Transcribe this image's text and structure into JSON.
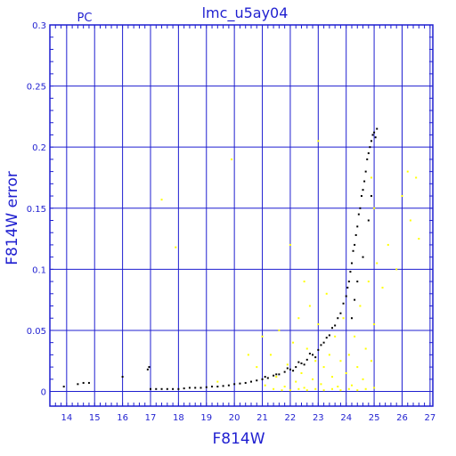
{
  "chart_data": {
    "type": "scatter",
    "title": "lmc_u5ay04",
    "corner_label": "PC",
    "xlabel": "F814W",
    "ylabel": "F814W error",
    "xlim": [
      13.4,
      27.1
    ],
    "ylim": [
      -0.012,
      0.3
    ],
    "x_ticks": [
      14,
      15,
      16,
      17,
      18,
      19,
      20,
      21,
      22,
      23,
      24,
      25,
      26,
      27
    ],
    "y_ticks": [
      0,
      0.05,
      0.1,
      0.15,
      0.2,
      0.25,
      0.3
    ],
    "x_tick_labels": [
      "14",
      "15",
      "16",
      "17",
      "18",
      "19",
      "20",
      "21",
      "22",
      "23",
      "24",
      "25",
      "26",
      "27"
    ],
    "y_tick_labels": [
      "0",
      "0.05",
      "0.1",
      "0.15",
      "0.2",
      "0.25",
      "0.3"
    ],
    "grid": true,
    "colors": {
      "axis": "#1f1fd0",
      "grid": "#1f1fd0",
      "series_main": "#000000",
      "series_other": "#ffff00"
    },
    "series": [
      {
        "color": "#000000",
        "points": [
          [
            13.9,
            0.004
          ],
          [
            14.4,
            0.006
          ],
          [
            14.6,
            0.007
          ],
          [
            14.8,
            0.007
          ],
          [
            16.0,
            0.012
          ],
          [
            16.9,
            0.018
          ],
          [
            16.95,
            0.02
          ],
          [
            17.0,
            0.002
          ],
          [
            17.2,
            0.002
          ],
          [
            17.4,
            0.002
          ],
          [
            17.6,
            0.002
          ],
          [
            17.8,
            0.002
          ],
          [
            18.0,
            0.002
          ],
          [
            18.2,
            0.0025
          ],
          [
            18.4,
            0.003
          ],
          [
            18.6,
            0.003
          ],
          [
            18.8,
            0.003
          ],
          [
            19.0,
            0.0035
          ],
          [
            19.2,
            0.004
          ],
          [
            19.4,
            0.004
          ],
          [
            19.6,
            0.0045
          ],
          [
            19.8,
            0.005
          ],
          [
            20.0,
            0.006
          ],
          [
            20.2,
            0.0065
          ],
          [
            20.4,
            0.007
          ],
          [
            20.6,
            0.008
          ],
          [
            20.8,
            0.009
          ],
          [
            21.0,
            0.01
          ],
          [
            21.2,
            0.011
          ],
          [
            21.4,
            0.013
          ],
          [
            21.6,
            0.014
          ],
          [
            21.8,
            0.016
          ],
          [
            22.0,
            0.018
          ],
          [
            22.2,
            0.02
          ],
          [
            22.4,
            0.023
          ],
          [
            22.6,
            0.026
          ],
          [
            22.8,
            0.03
          ],
          [
            23.0,
            0.034
          ],
          [
            23.2,
            0.04
          ],
          [
            23.4,
            0.046
          ],
          [
            23.6,
            0.054
          ],
          [
            23.8,
            0.064
          ],
          [
            24.0,
            0.078
          ],
          [
            24.1,
            0.09
          ],
          [
            24.2,
            0.105
          ],
          [
            24.3,
            0.12
          ],
          [
            24.4,
            0.135
          ],
          [
            24.5,
            0.15
          ],
          [
            24.6,
            0.165
          ],
          [
            24.7,
            0.18
          ],
          [
            24.8,
            0.195
          ],
          [
            24.9,
            0.205
          ],
          [
            25.0,
            0.212
          ],
          [
            25.1,
            0.215
          ],
          [
            21.1,
            0.012
          ],
          [
            21.5,
            0.014
          ],
          [
            21.9,
            0.019
          ],
          [
            22.3,
            0.024
          ],
          [
            22.7,
            0.031
          ],
          [
            23.1,
            0.038
          ],
          [
            23.5,
            0.052
          ],
          [
            23.9,
            0.072
          ],
          [
            24.15,
            0.098
          ],
          [
            24.35,
            0.128
          ],
          [
            24.55,
            0.16
          ],
          [
            24.75,
            0.19
          ],
          [
            24.95,
            0.21
          ],
          [
            22.1,
            0.017
          ],
          [
            22.5,
            0.022
          ],
          [
            22.9,
            0.028
          ],
          [
            23.3,
            0.044
          ],
          [
            23.7,
            0.06
          ],
          [
            24.05,
            0.085
          ],
          [
            24.25,
            0.115
          ],
          [
            24.45,
            0.145
          ],
          [
            24.65,
            0.172
          ],
          [
            24.85,
            0.2
          ],
          [
            25.05,
            0.208
          ],
          [
            24.2,
            0.06
          ],
          [
            24.4,
            0.09
          ],
          [
            24.6,
            0.11
          ],
          [
            24.8,
            0.14
          ],
          [
            24.9,
            0.16
          ],
          [
            24.3,
            0.075
          ]
        ]
      },
      {
        "color": "#ffff00",
        "points": [
          [
            17.4,
            0.157
          ],
          [
            17.9,
            0.118
          ],
          [
            19.4,
            0.008
          ],
          [
            19.9,
            0.19
          ],
          [
            20.5,
            0.03
          ],
          [
            20.8,
            0.02
          ],
          [
            21.0,
            0.045
          ],
          [
            21.1,
            0.005
          ],
          [
            21.3,
            0.03
          ],
          [
            21.5,
            0.012
          ],
          [
            21.6,
            0.05
          ],
          [
            21.8,
            0.004
          ],
          [
            21.9,
            0.022
          ],
          [
            22.0,
            0.12
          ],
          [
            22.1,
            0.04
          ],
          [
            22.2,
            0.008
          ],
          [
            22.3,
            0.06
          ],
          [
            22.4,
            0.015
          ],
          [
            22.5,
            0.003
          ],
          [
            22.6,
            0.035
          ],
          [
            22.7,
            0.07
          ],
          [
            22.8,
            0.01
          ],
          [
            22.9,
            0.025
          ],
          [
            23.0,
            0.055
          ],
          [
            23.1,
            0.006
          ],
          [
            23.2,
            0.02
          ],
          [
            23.3,
            0.08
          ],
          [
            23.4,
            0.03
          ],
          [
            23.5,
            0.012
          ],
          [
            23.6,
            0.045
          ],
          [
            23.7,
            0.004
          ],
          [
            23.8,
            0.025
          ],
          [
            23.9,
            0.06
          ],
          [
            24.0,
            0.015
          ],
          [
            24.1,
            0.03
          ],
          [
            24.2,
            0.005
          ],
          [
            24.3,
            0.045
          ],
          [
            24.4,
            0.02
          ],
          [
            24.5,
            0.07
          ],
          [
            24.6,
            0.01
          ],
          [
            24.7,
            0.035
          ],
          [
            24.8,
            0.09
          ],
          [
            24.9,
            0.025
          ],
          [
            25.0,
            0.055
          ],
          [
            25.1,
            0.105
          ],
          [
            25.3,
            0.085
          ],
          [
            25.5,
            0.12
          ],
          [
            25.8,
            0.1
          ],
          [
            26.0,
            0.16
          ],
          [
            26.2,
            0.18
          ],
          [
            26.3,
            0.14
          ],
          [
            26.5,
            0.175
          ],
          [
            26.6,
            0.125
          ],
          [
            25.0,
            0.15
          ],
          [
            24.9,
            0.175
          ],
          [
            21.4,
            0.002
          ],
          [
            21.7,
            0.001
          ],
          [
            22.0,
            0.001
          ],
          [
            22.3,
            0.002
          ],
          [
            22.6,
            0.001
          ],
          [
            22.9,
            0.002
          ],
          [
            23.2,
            0.001
          ],
          [
            23.5,
            0.002
          ],
          [
            23.8,
            0.001
          ],
          [
            24.1,
            0.002
          ],
          [
            24.4,
            0.001
          ],
          [
            24.7,
            0.002
          ],
          [
            25.0,
            0.003
          ],
          [
            23.0,
            0.205
          ],
          [
            22.5,
            0.09
          ]
        ]
      }
    ]
  }
}
